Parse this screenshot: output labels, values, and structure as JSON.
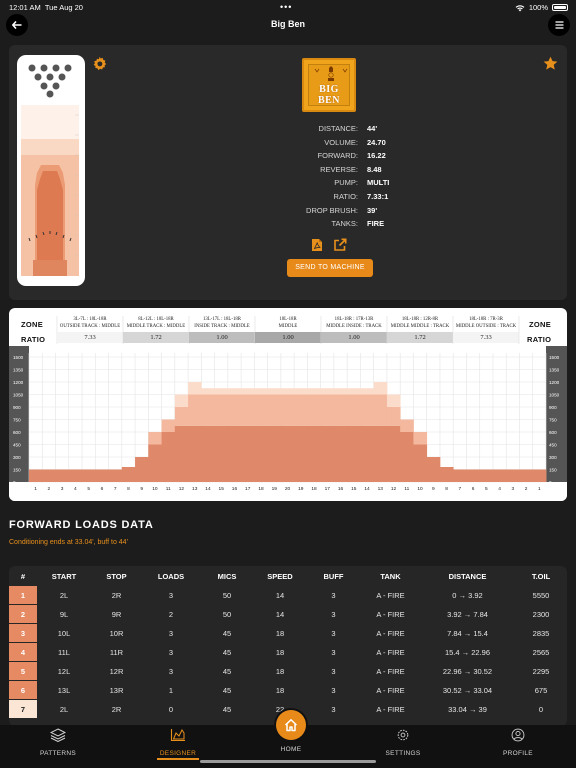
{
  "status_bar": {
    "time": "12:01 AM",
    "date": "Tue Aug 20",
    "battery": "100%"
  },
  "header": {
    "title": "Big Ben",
    "back_icon": "arrow-left-icon",
    "menu_icon": "hamburger-icon"
  },
  "pattern": {
    "logo_text": "BIG BEN",
    "specs": [
      {
        "key": "DISTANCE:",
        "value": "44'"
      },
      {
        "key": "VOLUME:",
        "value": "24.70"
      },
      {
        "key": "FORWARD:",
        "value": "16.22"
      },
      {
        "key": "REVERSE:",
        "value": "8.48"
      },
      {
        "key": "PUMP:",
        "value": "MULTI"
      },
      {
        "key": "RATIO:",
        "value": "7.33:1"
      },
      {
        "key": "DROP BRUSH:",
        "value": "39'"
      },
      {
        "key": "TANKS:",
        "value": "FIRE"
      }
    ],
    "send_button": "SEND TO MACHINE",
    "accent": "#e88a1a"
  },
  "graph": {
    "zone_label": "ZONE",
    "ratio_label": "RATIO",
    "zones": [
      {
        "line1": "3L-7L : 18L-18R",
        "line2": "OUTSIDE TRACK : MIDDLE",
        "ratio": "7.33"
      },
      {
        "line1": "8L-12L : 18L-18R",
        "line2": "MIDDLE TRACK : MIDDLE",
        "ratio": "1.72"
      },
      {
        "line1": "13L-17L : 18L-18R",
        "line2": "INSIDE TRACK : MIDDLE",
        "ratio": "1.00"
      },
      {
        "line1": "18L-18R",
        "line2": "MIDDLE",
        "ratio": "1.00"
      },
      {
        "line1": "18L-18R : 17R-13R",
        "line2": "MIDDLE INSIDE : TRACK",
        "ratio": "1.00"
      },
      {
        "line1": "18L-18R : 12R-8R",
        "line2": "MIDDLE MIDDLE : TRACK",
        "ratio": "1.72"
      },
      {
        "line1": "18L-18R : 7R-3R",
        "line2": "MIDDLE OUTSIDE : TRACK",
        "ratio": "7.33"
      }
    ],
    "y_ticks": [
      "0",
      "150",
      "300",
      "450",
      "600",
      "750",
      "900",
      "1050",
      "1200",
      "1350",
      "1500"
    ],
    "x_ticks": [
      "1",
      "2",
      "3",
      "4",
      "5",
      "6",
      "7",
      "8",
      "9",
      "10",
      "11",
      "12",
      "13",
      "14",
      "15",
      "16",
      "17",
      "18",
      "19",
      "20",
      "19",
      "18",
      "17",
      "16",
      "15",
      "14",
      "13",
      "12",
      "11",
      "10",
      "9",
      "8",
      "7",
      "6",
      "5",
      "4",
      "3",
      "2",
      "1"
    ],
    "profile": [
      [
        150,
        0,
        0
      ],
      [
        150,
        0,
        0
      ],
      [
        150,
        0,
        0
      ],
      [
        150,
        0,
        0
      ],
      [
        150,
        0,
        0
      ],
      [
        150,
        0,
        0
      ],
      [
        150,
        0,
        0
      ],
      [
        180,
        0,
        0
      ],
      [
        300,
        0,
        0
      ],
      [
        450,
        150,
        0
      ],
      [
        600,
        150,
        0
      ],
      [
        675,
        225,
        150
      ],
      [
        675,
        375,
        150
      ],
      [
        675,
        375,
        75
      ],
      [
        675,
        375,
        75
      ],
      [
        675,
        375,
        75
      ],
      [
        675,
        375,
        75
      ],
      [
        675,
        375,
        75
      ],
      [
        675,
        375,
        75
      ],
      [
        675,
        375,
        75
      ],
      [
        675,
        375,
        75
      ],
      [
        675,
        375,
        75
      ],
      [
        675,
        375,
        75
      ],
      [
        675,
        375,
        75
      ],
      [
        675,
        375,
        75
      ],
      [
        675,
        375,
        75
      ],
      [
        675,
        375,
        150
      ],
      [
        675,
        225,
        150
      ],
      [
        600,
        150,
        0
      ],
      [
        450,
        150,
        0
      ],
      [
        300,
        0,
        0
      ],
      [
        180,
        0,
        0
      ],
      [
        150,
        0,
        0
      ],
      [
        150,
        0,
        0
      ],
      [
        150,
        0,
        0
      ],
      [
        150,
        0,
        0
      ],
      [
        150,
        0,
        0
      ],
      [
        150,
        0,
        0
      ],
      [
        150,
        0,
        0
      ]
    ]
  },
  "forward_loads": {
    "title": "FORWARD LOADS DATA",
    "subtitle": "Conditioning ends at 33.04', buff to 44'",
    "columns": [
      "#",
      "START",
      "STOP",
      "LOADS",
      "MICS",
      "SPEED",
      "BUFF",
      "TANK",
      "DISTANCE",
      "T.OIL"
    ],
    "rows": [
      [
        "1",
        "2L",
        "2R",
        "3",
        "50",
        "14",
        "3",
        "A - FIRE",
        "0 → 3.92",
        "5550"
      ],
      [
        "2",
        "9L",
        "9R",
        "2",
        "50",
        "14",
        "3",
        "A - FIRE",
        "3.92 → 7.84",
        "2300"
      ],
      [
        "3",
        "10L",
        "10R",
        "3",
        "45",
        "18",
        "3",
        "A - FIRE",
        "7.84 → 15.4",
        "2835"
      ],
      [
        "4",
        "11L",
        "11R",
        "3",
        "45",
        "18",
        "3",
        "A - FIRE",
        "15.4 → 22.96",
        "2565"
      ],
      [
        "5",
        "12L",
        "12R",
        "3",
        "45",
        "18",
        "3",
        "A - FIRE",
        "22.96 → 30.52",
        "2295"
      ],
      [
        "6",
        "13L",
        "13R",
        "1",
        "45",
        "18",
        "3",
        "A - FIRE",
        "30.52 → 33.04",
        "675"
      ],
      [
        "7",
        "2L",
        "2R",
        "0",
        "45",
        "22",
        "3",
        "A - FIRE",
        "33.04 → 39",
        "0"
      ]
    ],
    "row_colors": [
      "#e68a64",
      "#e68a64",
      "#e68a64",
      "#e68a64",
      "#e68a64",
      "#e68a64",
      "#fbe6d6"
    ]
  },
  "tab_bar": {
    "patterns": "PATTERNS",
    "designer": "DESIGNER",
    "home": "HOME",
    "settings": "SETTINGS",
    "profile": "PROFILE",
    "active": "designer"
  }
}
